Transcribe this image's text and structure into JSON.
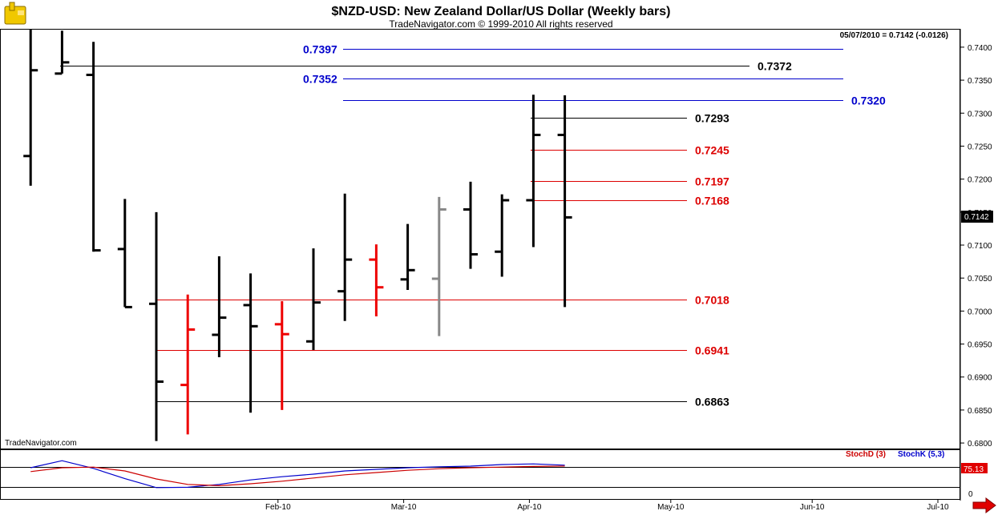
{
  "title": "$NZD-USD:  New Zealand Dollar/US Dollar  (Weekly bars)",
  "subtitle": "TradeNavigator.com © 1999-2010 All rights reserved",
  "last_price_info": "05/07/2010 = 0.7142 (-0.0126)",
  "watermark": "TradeNavigator.com",
  "current_price_label": "0.7142",
  "stoch": {
    "d_label": "StochD (3)",
    "k_label": "StochK (5,3)",
    "value_label": "75.13",
    "zero_label": "0",
    "d_color": "#cc0000",
    "k_color": "#0000cc"
  },
  "colors": {
    "blue_level": "#0000cc",
    "red_level": "#dd0000",
    "black_level": "#000000",
    "bar_black": "#000000",
    "bar_red": "#ee0000",
    "bar_gray": "#888888"
  },
  "chart_data": {
    "type": "ohlc",
    "title": "$NZD-USD:  New Zealand Dollar/US Dollar  (Weekly bars)",
    "ylim": [
      0.68,
      0.743
    ],
    "y_ticks": [
      "0.7400",
      "0.7350",
      "0.7300",
      "0.7250",
      "0.7200",
      "0.7150",
      "0.7100",
      "0.7050",
      "0.7000",
      "0.6950",
      "0.6900",
      "0.6850",
      "0.6800"
    ],
    "x_ticks": [
      {
        "label": "Feb-10",
        "week": 4.0
      },
      {
        "label": "Mar-10",
        "week": 8.0
      },
      {
        "label": "Apr-10",
        "week": 12.0
      },
      {
        "label": "May-10",
        "week": 16.5
      },
      {
        "label": "Jun-10",
        "week": 21.0
      },
      {
        "label": "Jul-10",
        "week": 25.0
      }
    ],
    "bars": [
      {
        "week": -4,
        "open": 0.7235,
        "high": 0.743,
        "low": 0.719,
        "close": 0.7365,
        "color": "black"
      },
      {
        "week": -3,
        "open": 0.736,
        "high": 0.7425,
        "low": 0.736,
        "close": 0.7377,
        "color": "black"
      },
      {
        "week": -2,
        "open": 0.7358,
        "high": 0.7408,
        "low": 0.709,
        "close": 0.7092,
        "color": "black"
      },
      {
        "week": -1,
        "open": 0.7094,
        "high": 0.717,
        "low": 0.7006,
        "close": 0.7006,
        "color": "black"
      },
      {
        "week": 0,
        "open": 0.7011,
        "high": 0.715,
        "low": 0.6803,
        "close": 0.6893,
        "color": "black"
      },
      {
        "week": 1,
        "open": 0.6888,
        "high": 0.7025,
        "low": 0.6813,
        "close": 0.6972,
        "color": "red"
      },
      {
        "week": 2,
        "open": 0.6964,
        "high": 0.7083,
        "low": 0.693,
        "close": 0.699,
        "color": "black"
      },
      {
        "week": 3,
        "open": 0.7009,
        "high": 0.7057,
        "low": 0.6846,
        "close": 0.6977,
        "color": "black"
      },
      {
        "week": 4,
        "open": 0.698,
        "high": 0.7015,
        "low": 0.685,
        "close": 0.6965,
        "color": "red"
      },
      {
        "week": 5,
        "open": 0.6954,
        "high": 0.7095,
        "low": 0.6941,
        "close": 0.7013,
        "color": "black"
      },
      {
        "week": 6,
        "open": 0.703,
        "high": 0.7178,
        "low": 0.6985,
        "close": 0.7078,
        "color": "black"
      },
      {
        "week": 7,
        "open": 0.7078,
        "high": 0.7101,
        "low": 0.6992,
        "close": 0.7036,
        "color": "red"
      },
      {
        "week": 8,
        "open": 0.7048,
        "high": 0.7132,
        "low": 0.7032,
        "close": 0.7062,
        "color": "black"
      },
      {
        "week": 9,
        "open": 0.7049,
        "high": 0.7173,
        "low": 0.6962,
        "close": 0.7154,
        "color": "gray"
      },
      {
        "week": 10,
        "open": 0.7154,
        "high": 0.7196,
        "low": 0.7064,
        "close": 0.7086,
        "color": "black"
      },
      {
        "week": 11,
        "open": 0.709,
        "high": 0.7177,
        "low": 0.7052,
        "close": 0.7168,
        "color": "black"
      },
      {
        "week": 12,
        "open": 0.7168,
        "high": 0.7328,
        "low": 0.7097,
        "close": 0.7267,
        "color": "black"
      },
      {
        "week": 13,
        "open": 0.7267,
        "high": 0.7327,
        "low": 0.7006,
        "close": 0.7142,
        "color": "black"
      }
    ],
    "levels": [
      {
        "value": 0.7397,
        "label": "0.7397",
        "color": "blue",
        "from_week": 6.0,
        "to_week": 15.5,
        "label_side": "left"
      },
      {
        "value": 0.7372,
        "label": "0.7372",
        "color": "black",
        "from_week": -3.0,
        "to_week": 15.0,
        "label_side": "right"
      },
      {
        "value": 0.7352,
        "label": "0.7352",
        "color": "blue",
        "from_week": 6.0,
        "to_week": 15.5,
        "label_side": "left"
      },
      {
        "value": 0.732,
        "label": "0.7320",
        "color": "blue",
        "from_week": 6.0,
        "to_week": 15.5,
        "label_side": "right"
      },
      {
        "value": 0.7293,
        "label": "0.7293",
        "color": "black",
        "from_week": 12.0,
        "to_week": 17.3,
        "label_side": "right"
      },
      {
        "value": 0.7245,
        "label": "0.7245",
        "color": "red",
        "from_week": 12.0,
        "to_week": 17.3,
        "label_side": "right"
      },
      {
        "value": 0.7197,
        "label": "0.7197",
        "color": "red",
        "from_week": 12.0,
        "to_week": 17.3,
        "label_side": "right"
      },
      {
        "value": 0.7168,
        "label": "0.7168",
        "color": "red",
        "from_week": 12.0,
        "to_week": 17.3,
        "label_side": "right"
      },
      {
        "value": 0.7018,
        "label": "0.7018",
        "color": "red",
        "from_week": 0.0,
        "to_week": 17.3,
        "label_side": "right"
      },
      {
        "value": 0.6941,
        "label": "0.6941",
        "color": "red",
        "from_week": 0.0,
        "to_week": 17.3,
        "label_side": "right"
      },
      {
        "value": 0.6863,
        "label": "0.6863",
        "color": "black",
        "from_week": 0.0,
        "to_week": 17.3,
        "label_side": "right"
      }
    ],
    "stoch_d": [
      [
        -4.0,
        58
      ],
      [
        -3.0,
        70
      ],
      [
        -2.0,
        72
      ],
      [
        -1.0,
        60
      ],
      [
        0.0,
        35
      ],
      [
        1.0,
        18
      ],
      [
        2.0,
        14
      ],
      [
        3.0,
        20
      ],
      [
        4.0,
        28
      ],
      [
        5.0,
        38
      ],
      [
        6.0,
        48
      ],
      [
        7.0,
        55
      ],
      [
        8.0,
        62
      ],
      [
        9.0,
        67
      ],
      [
        10.0,
        70
      ],
      [
        11.0,
        72
      ],
      [
        12.0,
        74
      ],
      [
        13.0,
        75.13
      ]
    ],
    "stoch_k": [
      [
        -4.0,
        70
      ],
      [
        -3.0,
        92
      ],
      [
        -2.0,
        68
      ],
      [
        -1.0,
        36
      ],
      [
        0.0,
        8
      ],
      [
        1.0,
        9
      ],
      [
        2.0,
        18
      ],
      [
        3.0,
        32
      ],
      [
        4.0,
        42
      ],
      [
        5.0,
        50
      ],
      [
        6.0,
        60
      ],
      [
        7.0,
        65
      ],
      [
        8.0,
        70
      ],
      [
        9.0,
        73
      ],
      [
        10.0,
        75
      ],
      [
        11.0,
        80
      ],
      [
        12.0,
        82
      ],
      [
        13.0,
        78
      ]
    ]
  }
}
